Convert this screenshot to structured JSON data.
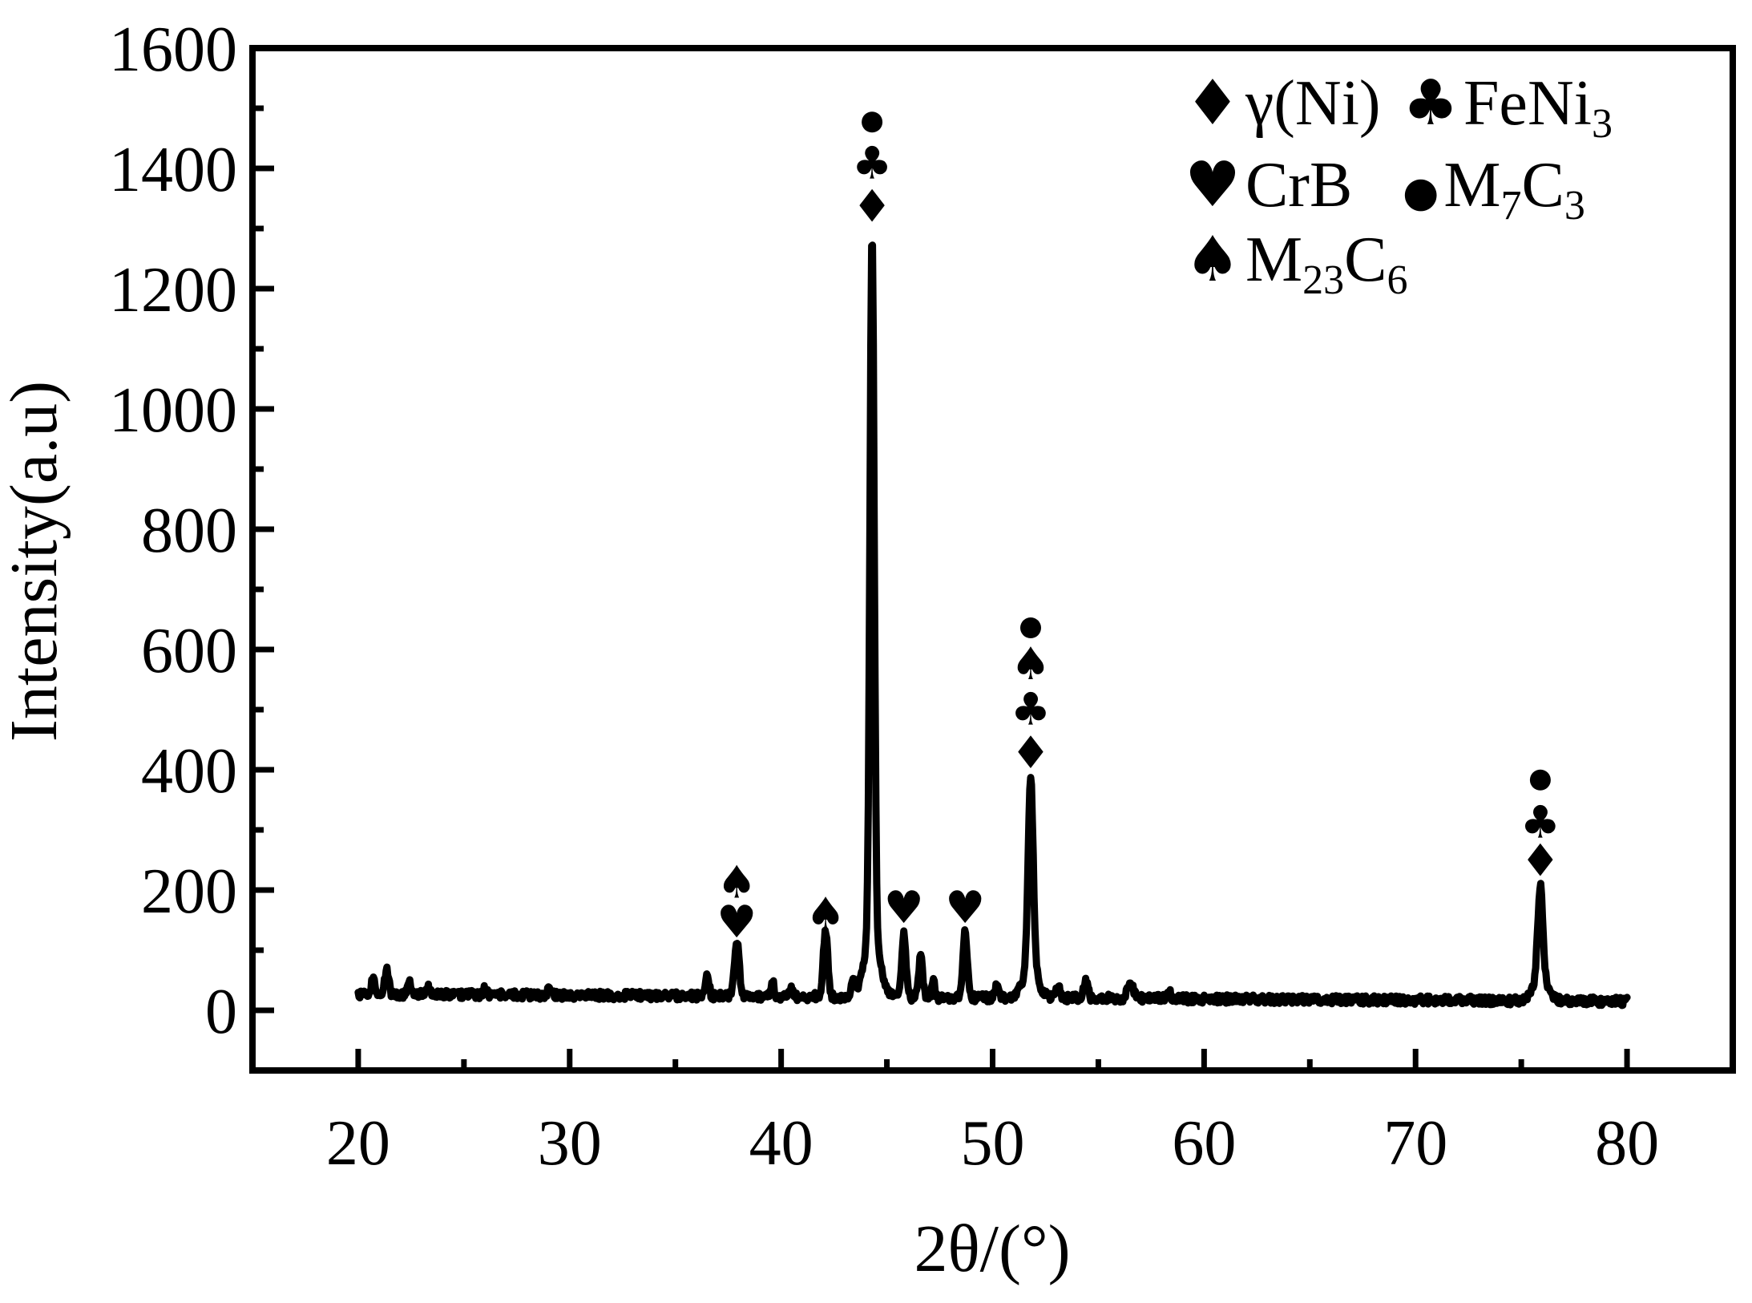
{
  "figure": {
    "background_color": "#ffffff",
    "line_color": "#000000"
  },
  "marker_glyphs": {
    "diamond": "♦",
    "club": "♣",
    "heart": "♥",
    "spade": "♠",
    "circle": "●"
  },
  "legend": {
    "columns": 2,
    "items": [
      {
        "symbol": "diamond",
        "glyph": "♦",
        "label": "γ(Ni)",
        "segments": [
          {
            "t": "γ(Ni)"
          }
        ]
      },
      {
        "symbol": "club",
        "glyph": "♣",
        "label": "FeNi3",
        "segments": [
          {
            "t": "FeNi"
          },
          {
            "t": "3",
            "sub": true
          }
        ]
      },
      {
        "symbol": "heart",
        "glyph": "♥",
        "label": "CrB",
        "segments": [
          {
            "t": "CrB"
          }
        ]
      },
      {
        "symbol": "circle",
        "glyph": "●",
        "label": "M7C3",
        "segments": [
          {
            "t": "M"
          },
          {
            "t": "7",
            "sub": true
          },
          {
            "t": "C"
          },
          {
            "t": "3",
            "sub": true
          }
        ]
      },
      {
        "symbol": "spade",
        "glyph": "♠",
        "label": "M23C6",
        "segments": [
          {
            "t": "M"
          },
          {
            "t": "23",
            "sub": true
          },
          {
            "t": "C"
          },
          {
            "t": "6",
            "sub": true
          }
        ]
      }
    ]
  },
  "axes": {
    "x_major_ticks": [
      20,
      30,
      40,
      50,
      60,
      70,
      80
    ],
    "x_minor_ticks": [
      25,
      35,
      45,
      55,
      65,
      75
    ],
    "y_major_ticks": [
      0,
      200,
      400,
      600,
      800,
      1000,
      1200,
      1400,
      1600
    ],
    "y_minor_ticks": [
      100,
      300,
      500,
      700,
      900,
      1100,
      1300,
      1500
    ]
  },
  "chart_data": {
    "type": "line",
    "title": "",
    "xlabel": "2θ/(°)",
    "ylabel": "Intensity(a.u)",
    "xlim": [
      15,
      85
    ],
    "ylim": [
      -100,
      1600
    ],
    "x_data_range": [
      20,
      80
    ],
    "grid": false,
    "legend_position": "upper right inside",
    "baseline": {
      "start": 27,
      "slope": -0.2,
      "min": 14
    },
    "noise_amplitude": 7,
    "peaks": [
      {
        "two_theta": 20.7,
        "intensity": 55,
        "width": 0.1
      },
      {
        "two_theta": 21.35,
        "intensity": 68,
        "width": 0.13
      },
      {
        "two_theta": 22.4,
        "intensity": 48,
        "width": 0.1
      },
      {
        "two_theta": 23.3,
        "intensity": 40,
        "width": 0.1
      },
      {
        "two_theta": 26.0,
        "intensity": 35,
        "width": 0.12
      },
      {
        "two_theta": 29.0,
        "intensity": 33,
        "width": 0.1
      },
      {
        "two_theta": 33.0,
        "intensity": 30,
        "width": 0.1
      },
      {
        "two_theta": 36.5,
        "intensity": 63,
        "width": 0.12
      },
      {
        "two_theta": 37.9,
        "intensity": 117,
        "width": 0.16,
        "phases": [
          "M23C6",
          "CrB"
        ],
        "markers": [
          {
            "symbol": "spade",
            "y": 213
          },
          {
            "symbol": "heart",
            "y": 147
          }
        ]
      },
      {
        "two_theta": 39.6,
        "intensity": 50,
        "width": 0.1
      },
      {
        "two_theta": 40.5,
        "intensity": 40,
        "width": 0.1
      },
      {
        "two_theta": 42.1,
        "intensity": 131,
        "width": 0.15,
        "phases": [
          "M23C6"
        ],
        "markers": [
          {
            "symbol": "spade",
            "y": 160
          }
        ]
      },
      {
        "two_theta": 43.4,
        "intensity": 45,
        "width": 0.12
      },
      {
        "two_theta": 44.3,
        "intensity": 1297,
        "width": 0.14,
        "base_width": 0.5,
        "base_amp": 110,
        "phases": [
          "M7C3",
          "FeNi3",
          "gamma(Ni)"
        ],
        "markers": [
          {
            "symbol": "circle",
            "y": 1477
          },
          {
            "symbol": "club",
            "y": 1409
          },
          {
            "symbol": "diamond",
            "y": 1337
          }
        ]
      },
      {
        "two_theta": 45.8,
        "intensity": 127,
        "width": 0.14,
        "phases": [
          "CrB"
        ],
        "markers": [
          {
            "symbol": "heart",
            "y": 171
          }
        ]
      },
      {
        "two_theta": 46.6,
        "intensity": 89,
        "width": 0.13
      },
      {
        "two_theta": 47.2,
        "intensity": 50,
        "width": 0.1
      },
      {
        "two_theta": 48.7,
        "intensity": 129,
        "width": 0.15,
        "phases": [
          "CrB"
        ],
        "markers": [
          {
            "symbol": "heart",
            "y": 171
          }
        ]
      },
      {
        "two_theta": 50.2,
        "intensity": 45,
        "width": 0.12
      },
      {
        "two_theta": 51.8,
        "intensity": 389,
        "width": 0.16,
        "base_width": 0.45,
        "base_amp": 60,
        "phases": [
          "M7C3",
          "M23C6",
          "FeNi3",
          "gamma(Ni)"
        ],
        "markers": [
          {
            "symbol": "circle",
            "y": 636
          },
          {
            "symbol": "spade",
            "y": 576
          },
          {
            "symbol": "club",
            "y": 501
          },
          {
            "symbol": "diamond",
            "y": 428
          }
        ]
      },
      {
        "two_theta": 53.1,
        "intensity": 40,
        "width": 0.12
      },
      {
        "two_theta": 54.4,
        "intensity": 48,
        "width": 0.15
      },
      {
        "two_theta": 56.5,
        "intensity": 47,
        "width": 0.2
      },
      {
        "two_theta": 58.3,
        "intensity": 32,
        "width": 0.15
      },
      {
        "two_theta": 75.9,
        "intensity": 209,
        "width": 0.16,
        "base_width": 0.45,
        "base_amp": 45,
        "phases": [
          "M7C3",
          "FeNi3",
          "gamma(Ni)"
        ],
        "markers": [
          {
            "symbol": "circle",
            "y": 383
          },
          {
            "symbol": "club",
            "y": 313
          },
          {
            "symbol": "diamond",
            "y": 249
          }
        ]
      }
    ]
  }
}
